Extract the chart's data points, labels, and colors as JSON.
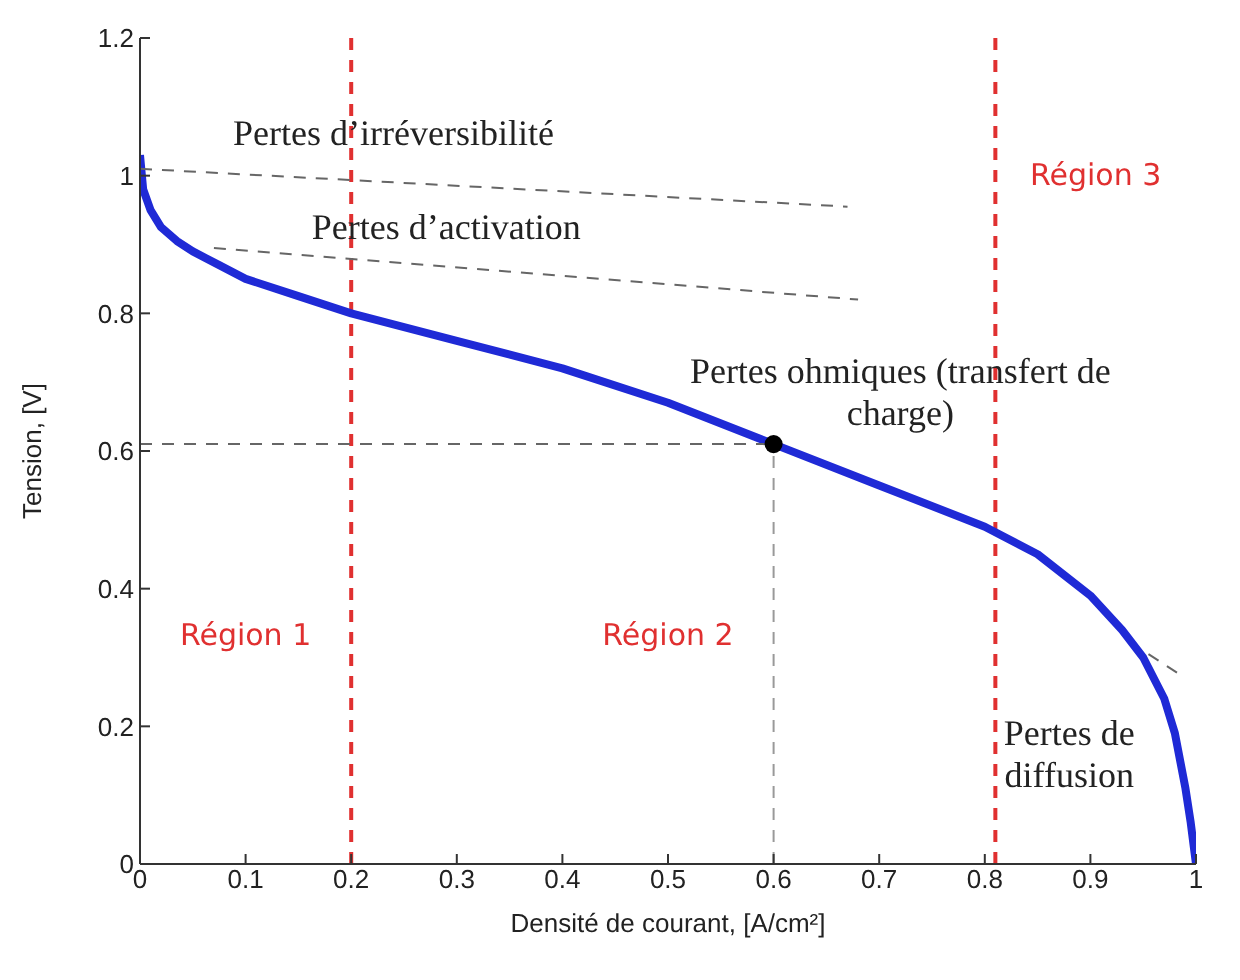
{
  "chart_data": {
    "type": "line",
    "xlabel": "Densité de courant, [A/cm²]",
    "ylabel": "Tension, [V]",
    "xlim": [
      0,
      1
    ],
    "xticks": [
      0,
      0.1,
      0.2,
      0.3,
      0.4,
      0.5,
      0.6,
      0.7,
      0.8,
      0.9,
      1
    ],
    "ylim": [
      0,
      1.2
    ],
    "yticks": [
      0,
      0.2,
      0.4,
      0.6,
      0.8,
      1,
      1.2
    ],
    "grid": false,
    "legend": false,
    "marker": "none",
    "line_style": "solid",
    "series": [
      {
        "color": "#1f2ad6",
        "x": [
          0,
          0.003,
          0.01,
          0.02,
          0.035,
          0.05,
          0.075,
          0.1,
          0.15,
          0.2,
          0.3,
          0.4,
          0.5,
          0.6,
          0.7,
          0.8,
          0.85,
          0.9,
          0.93,
          0.95,
          0.97,
          0.98,
          0.99,
          0.995,
          1
        ],
        "values": [
          1.03,
          0.98,
          0.95,
          0.925,
          0.905,
          0.89,
          0.87,
          0.85,
          0.825,
          0.8,
          0.76,
          0.72,
          0.67,
          0.61,
          0.55,
          0.49,
          0.45,
          0.39,
          0.34,
          0.3,
          0.24,
          0.19,
          0.11,
          0.06,
          0
        ]
      },
      {
        "type": "line",
        "line_style": "dashed",
        "color": "#666666",
        "x": [
          0,
          0.67
        ],
        "values": [
          1.01,
          0.955
        ]
      },
      {
        "type": "line",
        "line_style": "dashed",
        "color": "#666666",
        "x": [
          0.07,
          0.68
        ],
        "values": [
          0.895,
          0.82
        ]
      },
      {
        "type": "line",
        "line_style": "dashed",
        "color": "#666666",
        "x": [
          0.955,
          0.985
        ],
        "values": [
          0.305,
          0.275
        ]
      },
      {
        "type": "line",
        "line_style": "dashed",
        "color": "#999999",
        "x": [
          0.6,
          0.6
        ],
        "values": [
          0,
          0.61
        ]
      },
      {
        "type": "line",
        "line_style": "dashed",
        "color": "#666666",
        "x": [
          0,
          0.6
        ],
        "values": [
          0.61,
          0.61
        ]
      },
      {
        "type": "scatter",
        "marker": "circle",
        "color": "#000000",
        "x": [
          0.6
        ],
        "values": [
          0.61
        ]
      }
    ],
    "ref_lines": [
      {
        "axis": "x",
        "value": 0.2,
        "color": "#e03030",
        "line_style": "dashed"
      },
      {
        "axis": "x",
        "value": 0.81,
        "color": "#e03030",
        "line_style": "dashed"
      }
    ],
    "annotations": [
      "Pertes d’irréversibilité",
      "Pertes d’activation",
      "Pertes ohmiques (transfert de charge)",
      "Pertes de diffusion",
      "Région 1",
      "Région 2",
      "Région 3"
    ]
  }
}
